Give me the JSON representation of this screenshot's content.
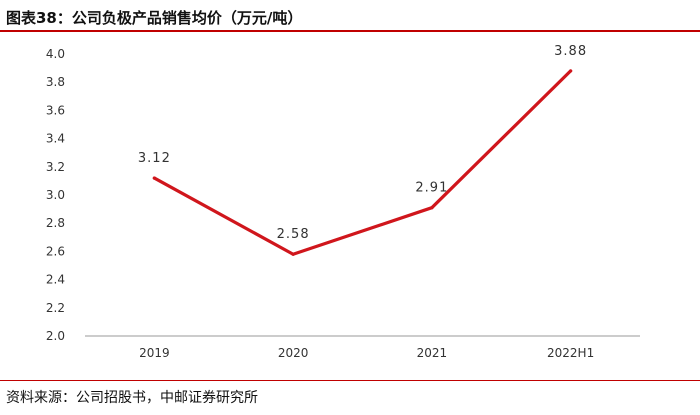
{
  "header": {
    "title": "图表38：公司负极产品销售均价（万元/吨）"
  },
  "footer": {
    "source": "资料来源：公司招股书，中邮证券研究所"
  },
  "colors": {
    "accent": "#c00000",
    "line": "#d0161c",
    "axis": "#999999"
  },
  "chart_data": {
    "type": "line",
    "title": "公司负极产品销售均价（万元/吨）",
    "xlabel": "",
    "ylabel": "",
    "categories": [
      "2019",
      "2020",
      "2021",
      "2022H1"
    ],
    "values": [
      3.12,
      2.58,
      2.91,
      3.88
    ],
    "data_labels": [
      "3.12",
      "2.58",
      "2.91",
      "3.88"
    ],
    "ylim": [
      2.0,
      4.0
    ],
    "yticks": [
      "2.0",
      "2.2",
      "2.4",
      "2.6",
      "2.8",
      "3.0",
      "3.2",
      "3.4",
      "3.6",
      "3.8",
      "4.0"
    ],
    "grid": false,
    "legend": "none"
  }
}
